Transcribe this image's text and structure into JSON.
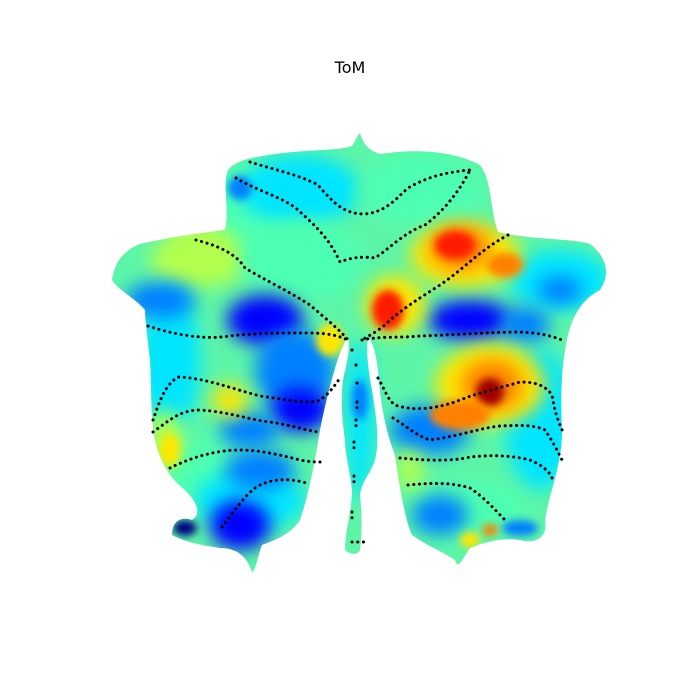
{
  "figure": {
    "title": "ToM"
  },
  "colormap": {
    "name": "jet",
    "stops": [
      "#00007f",
      "#0000ff",
      "#0080ff",
      "#00e5ff",
      "#4dffb2",
      "#b2ff4d",
      "#ffe600",
      "#ff8000",
      "#ff1a00",
      "#a00000"
    ]
  },
  "boundary_style": {
    "color": "#000000"
  }
}
